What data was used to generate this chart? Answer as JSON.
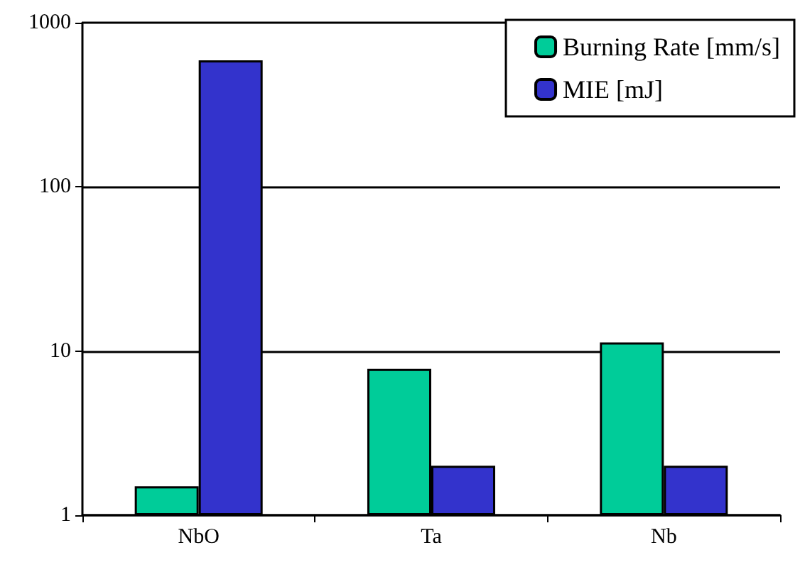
{
  "chart_data": {
    "type": "bar",
    "categories": [
      "NbO",
      "Ta",
      "Nb"
    ],
    "series": [
      {
        "name": "Burning Rate [mm/s]",
        "color": "#00cc99",
        "values": [
          1.5,
          7.8,
          11.3
        ]
      },
      {
        "name": "MIE [mJ]",
        "color": "#3333cc",
        "values": [
          590,
          2,
          2
        ]
      }
    ],
    "log": true,
    "ylim": [
      1,
      1000
    ],
    "yticks": [
      1,
      10,
      100,
      1000
    ],
    "grid": "y",
    "legend": "top right"
  }
}
